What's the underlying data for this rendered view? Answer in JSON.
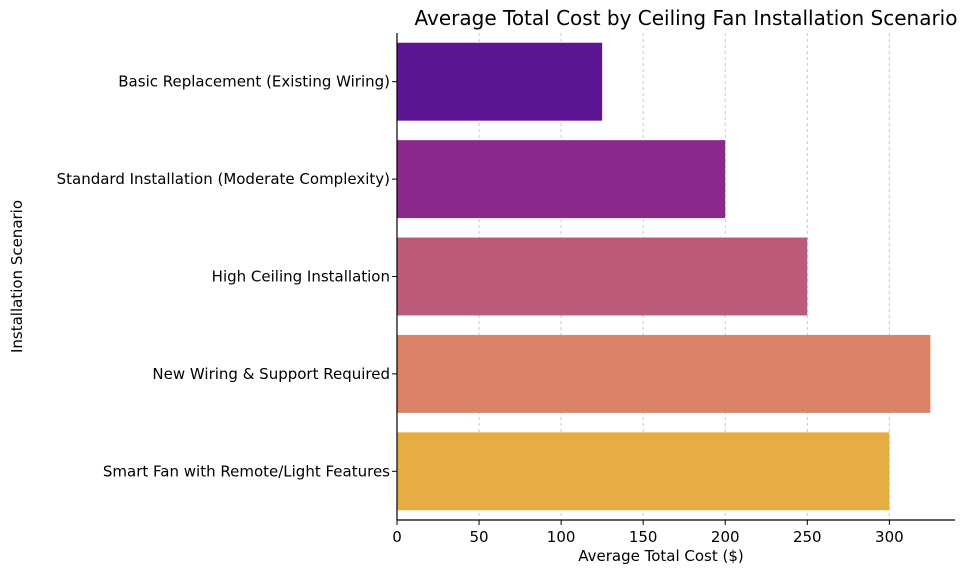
{
  "chart_data": {
    "type": "bar",
    "orientation": "horizontal",
    "title": "Average Total Cost by Ceiling Fan Installation Scenario",
    "xlabel": "Average Total Cost ($)",
    "ylabel": "Installation Scenario",
    "xlim": [
      0,
      340
    ],
    "xticks": [
      0,
      50,
      100,
      150,
      200,
      250,
      300
    ],
    "grid": "x-dashed",
    "categories": [
      "Basic Replacement (Existing Wiring)",
      "Standard Installation (Moderate Complexity)",
      "High Ceiling Installation",
      "New Wiring & Support Required",
      "Smart Fan with Remote/Light Features"
    ],
    "values": [
      125,
      200,
      250,
      325,
      300
    ],
    "colors": [
      "#5c1593",
      "#8a288c",
      "#bc5a7a",
      "#dc8266",
      "#e6ad45"
    ]
  }
}
